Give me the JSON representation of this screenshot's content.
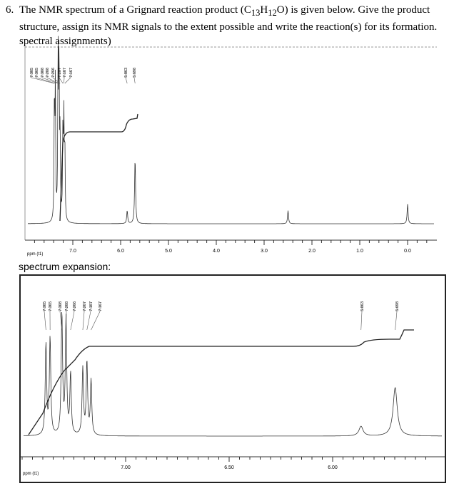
{
  "question": {
    "number": "6.",
    "text_before": "The NMR spectrum of a Grignard reaction product (C",
    "sub1": "13",
    "h": "H",
    "sub2": "12",
    "text_after": "O) is given below. Give the product structure, assign its NMR signals to the extent possible and write the reaction(s) for its formation. spectral assignments)"
  },
  "expansion_label": "spectrum expansion:",
  "chart_data": [
    {
      "type": "line",
      "xlabel": "ppm (t1)",
      "xlim": [
        8.0,
        -0.5
      ],
      "x_reversed": true,
      "ticks": [
        "7.0",
        "6.0",
        "5.0",
        "4.0",
        "3.0",
        "2.0",
        "1.0",
        "0.0"
      ],
      "peak_labels": [
        "7.385",
        "7.365",
        "7.308",
        "7.288",
        "7.266",
        "7.207",
        "7.187",
        "7.167",
        "5.863",
        "5.698"
      ],
      "peaks": [
        {
          "ppm": 7.385,
          "h": 0.75
        },
        {
          "ppm": 7.365,
          "h": 0.8
        },
        {
          "ppm": 7.308,
          "h": 1.0
        },
        {
          "ppm": 7.288,
          "h": 0.95
        },
        {
          "ppm": 7.266,
          "h": 0.5
        },
        {
          "ppm": 7.207,
          "h": 0.55
        },
        {
          "ppm": 7.187,
          "h": 0.6
        },
        {
          "ppm": 7.167,
          "h": 0.45
        },
        {
          "ppm": 5.863,
          "h": 0.08
        },
        {
          "ppm": 5.698,
          "h": 0.4
        },
        {
          "ppm": 2.5,
          "h": 0.08
        },
        {
          "ppm": 0.0,
          "h": 0.12
        }
      ]
    },
    {
      "type": "line",
      "xlabel": "ppm (t1)",
      "xlim": [
        7.55,
        5.55
      ],
      "x_reversed": true,
      "ticks": [
        "7.00",
        "6.50",
        "6.00"
      ],
      "peak_labels": [
        "7.385",
        "7.365",
        "7.308",
        "7.288",
        "7.266",
        "7.207",
        "7.187",
        "7.167",
        "5.863",
        "5.698"
      ]
    }
  ]
}
